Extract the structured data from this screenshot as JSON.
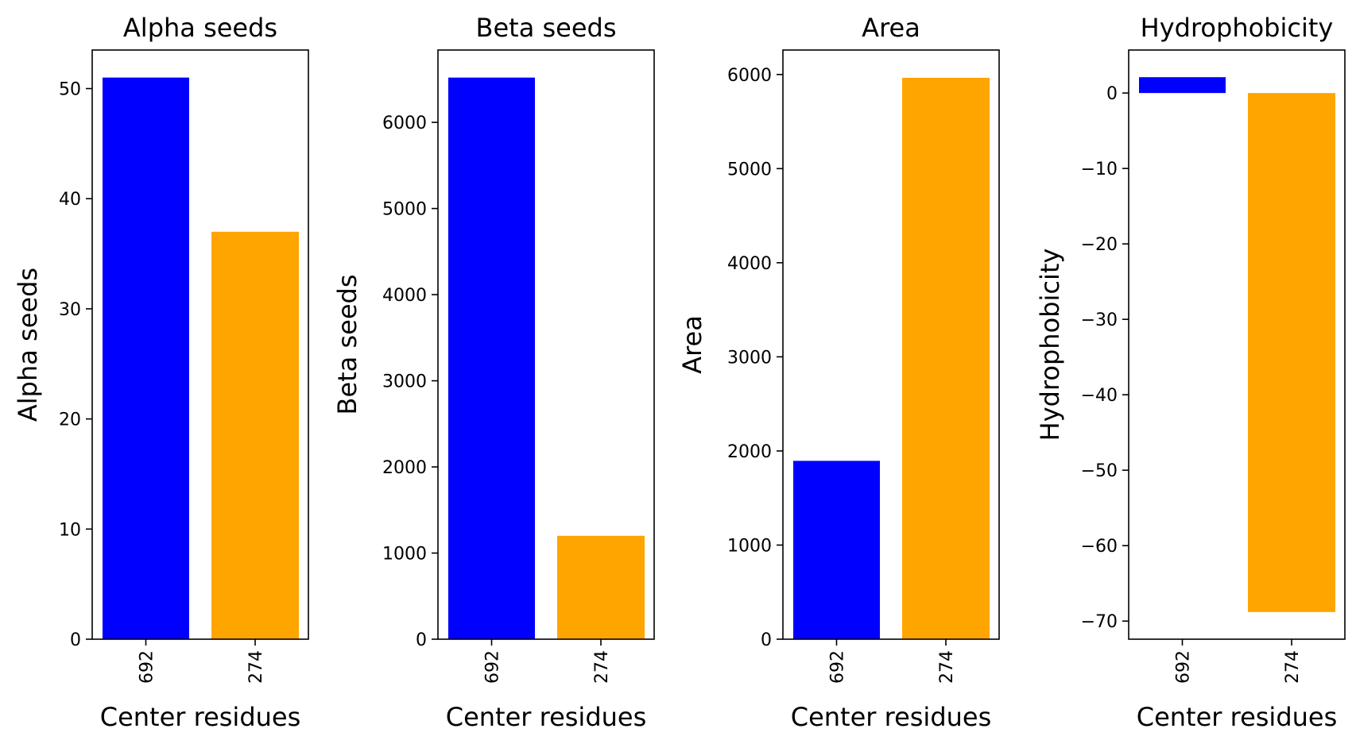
{
  "chart_data": [
    {
      "type": "bar",
      "title": "Alpha seeds",
      "xlabel": "Center residues",
      "ylabel": "Alpha seeds",
      "categories": [
        "692",
        "274"
      ],
      "values": [
        51,
        37
      ],
      "colors": [
        "#0000ff",
        "#ffa500"
      ],
      "ylim": [
        0,
        53.5
      ],
      "yticks": [
        0,
        10,
        20,
        30,
        40,
        50
      ],
      "ytick_labels": [
        "0",
        "10",
        "20",
        "30",
        "40",
        "50"
      ]
    },
    {
      "type": "bar",
      "title": "Beta seeds",
      "xlabel": "Center residues",
      "ylabel": "Beta seeds",
      "categories": [
        "692",
        "274"
      ],
      "values": [
        6520,
        1200
      ],
      "colors": [
        "#0000ff",
        "#ffa500"
      ],
      "ylim": [
        0,
        6840
      ],
      "yticks": [
        0,
        1000,
        2000,
        3000,
        4000,
        5000,
        6000
      ],
      "ytick_labels": [
        "0",
        "1000",
        "2000",
        "3000",
        "4000",
        "5000",
        "6000"
      ]
    },
    {
      "type": "bar",
      "title": "Area",
      "xlabel": "Center residues",
      "ylabel": "Area",
      "categories": [
        "692",
        "274"
      ],
      "values": [
        1895,
        5965
      ],
      "colors": [
        "#0000ff",
        "#ffa500"
      ],
      "ylim": [
        0,
        6260
      ],
      "yticks": [
        0,
        1000,
        2000,
        3000,
        4000,
        5000,
        6000
      ],
      "ytick_labels": [
        "0",
        "1000",
        "2000",
        "3000",
        "4000",
        "5000",
        "6000"
      ]
    },
    {
      "type": "bar",
      "title": "Hydrophobicity",
      "xlabel": "Center residues",
      "ylabel": "Hydrophobicity",
      "categories": [
        "692",
        "274"
      ],
      "values": [
        2.1,
        -68.8
      ],
      "colors": [
        "#0000ff",
        "#ffa500"
      ],
      "ylim": [
        -72.4,
        5.7
      ],
      "yticks": [
        0,
        -10,
        -20,
        -30,
        -40,
        -50,
        -60,
        -70
      ],
      "ytick_labels": [
        "0",
        "−10",
        "−20",
        "−30",
        "−40",
        "−50",
        "−60",
        "−70"
      ]
    }
  ]
}
